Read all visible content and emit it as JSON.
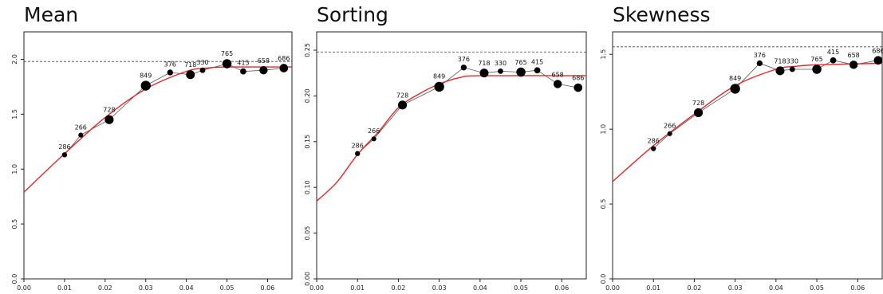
{
  "chart_data": [
    {
      "type": "scatter",
      "title": "Mean",
      "xlabel": "",
      "ylabel": "",
      "xlim": [
        0,
        0.066
      ],
      "ylim": [
        0,
        2.25
      ],
      "xticks": [
        "0.00",
        "0.01",
        "0.02",
        "0.03",
        "0.04",
        "0.05",
        "0.06"
      ],
      "yticks": [
        "0.0",
        "0.5",
        "1.0",
        "1.5",
        "2.0"
      ],
      "reference_line": 1.98,
      "points": [
        {
          "x": 0.01,
          "y": 1.13,
          "n": 286
        },
        {
          "x": 0.014,
          "y": 1.31,
          "n": 266
        },
        {
          "x": 0.021,
          "y": 1.45,
          "n": 728
        },
        {
          "x": 0.03,
          "y": 1.76,
          "n": 849
        },
        {
          "x": 0.036,
          "y": 1.88,
          "n": 376
        },
        {
          "x": 0.041,
          "y": 1.86,
          "n": 718
        },
        {
          "x": 0.044,
          "y": 1.9,
          "n": 330
        },
        {
          "x": 0.05,
          "y": 1.96,
          "n": 765
        },
        {
          "x": 0.054,
          "y": 1.89,
          "n": 415
        },
        {
          "x": 0.059,
          "y": 1.9,
          "n": 658
        },
        {
          "x": 0.064,
          "y": 1.92,
          "n": 686
        }
      ],
      "fit_curve": [
        {
          "x": 0.0,
          "y": 0.79
        },
        {
          "x": 0.01,
          "y": 1.14
        },
        {
          "x": 0.02,
          "y": 1.47
        },
        {
          "x": 0.03,
          "y": 1.73
        },
        {
          "x": 0.04,
          "y": 1.89
        },
        {
          "x": 0.045,
          "y": 1.92
        },
        {
          "x": 0.05,
          "y": 1.93
        },
        {
          "x": 0.066,
          "y": 1.93
        }
      ]
    },
    {
      "type": "scatter",
      "title": "Sorting",
      "xlabel": "",
      "ylabel": "",
      "xlim": [
        0,
        0.066
      ],
      "ylim": [
        0,
        0.27
      ],
      "xticks": [
        "0.00",
        "0.01",
        "0.02",
        "0.03",
        "0.04",
        "0.05",
        "0.06"
      ],
      "yticks": [
        "0.00",
        "0.05",
        "0.10",
        "0.15",
        "0.20",
        "0.25"
      ],
      "reference_line": 0.248,
      "points": [
        {
          "x": 0.01,
          "y": 0.137,
          "n": 286
        },
        {
          "x": 0.014,
          "y": 0.153,
          "n": 266
        },
        {
          "x": 0.021,
          "y": 0.19,
          "n": 728
        },
        {
          "x": 0.03,
          "y": 0.21,
          "n": 849
        },
        {
          "x": 0.036,
          "y": 0.231,
          "n": 376
        },
        {
          "x": 0.041,
          "y": 0.225,
          "n": 718
        },
        {
          "x": 0.045,
          "y": 0.227,
          "n": 330
        },
        {
          "x": 0.05,
          "y": 0.226,
          "n": 765
        },
        {
          "x": 0.054,
          "y": 0.228,
          "n": 415
        },
        {
          "x": 0.059,
          "y": 0.213,
          "n": 658
        },
        {
          "x": 0.064,
          "y": 0.209,
          "n": 686
        }
      ],
      "fit_curve": [
        {
          "x": 0.0,
          "y": 0.085
        },
        {
          "x": 0.005,
          "y": 0.106
        },
        {
          "x": 0.01,
          "y": 0.136
        },
        {
          "x": 0.015,
          "y": 0.16
        },
        {
          "x": 0.02,
          "y": 0.187
        },
        {
          "x": 0.025,
          "y": 0.202
        },
        {
          "x": 0.03,
          "y": 0.213
        },
        {
          "x": 0.035,
          "y": 0.22
        },
        {
          "x": 0.04,
          "y": 0.222
        },
        {
          "x": 0.066,
          "y": 0.222
        }
      ]
    },
    {
      "type": "scatter",
      "title": "Skewness",
      "xlabel": "",
      "ylabel": "",
      "xlim": [
        0,
        0.066
      ],
      "ylim": [
        0,
        1.65
      ],
      "xticks": [
        "0.00",
        "0.01",
        "0.02",
        "0.03",
        "0.04",
        "0.05",
        "0.06"
      ],
      "yticks": [
        "0.0",
        "0.5",
        "1.0",
        "1.5"
      ],
      "reference_line": 1.55,
      "points": [
        {
          "x": 0.01,
          "y": 0.87,
          "n": 286
        },
        {
          "x": 0.014,
          "y": 0.97,
          "n": 266
        },
        {
          "x": 0.021,
          "y": 1.11,
          "n": 728
        },
        {
          "x": 0.03,
          "y": 1.27,
          "n": 849
        },
        {
          "x": 0.036,
          "y": 1.44,
          "n": 376
        },
        {
          "x": 0.041,
          "y": 1.39,
          "n": 718
        },
        {
          "x": 0.044,
          "y": 1.4,
          "n": 330
        },
        {
          "x": 0.05,
          "y": 1.4,
          "n": 765
        },
        {
          "x": 0.054,
          "y": 1.46,
          "n": 415
        },
        {
          "x": 0.059,
          "y": 1.43,
          "n": 658
        },
        {
          "x": 0.065,
          "y": 1.46,
          "n": 686
        }
      ],
      "fit_curve": [
        {
          "x": 0.0,
          "y": 0.65
        },
        {
          "x": 0.01,
          "y": 0.89
        },
        {
          "x": 0.02,
          "y": 1.1
        },
        {
          "x": 0.03,
          "y": 1.29
        },
        {
          "x": 0.04,
          "y": 1.4
        },
        {
          "x": 0.045,
          "y": 1.42
        },
        {
          "x": 0.05,
          "y": 1.43
        },
        {
          "x": 0.066,
          "y": 1.44
        }
      ]
    }
  ],
  "colors": {
    "points": "#000000",
    "fit_line": "#e8262a",
    "connector": "#555555",
    "reference_line": "#444444",
    "frame": "#222222"
  }
}
